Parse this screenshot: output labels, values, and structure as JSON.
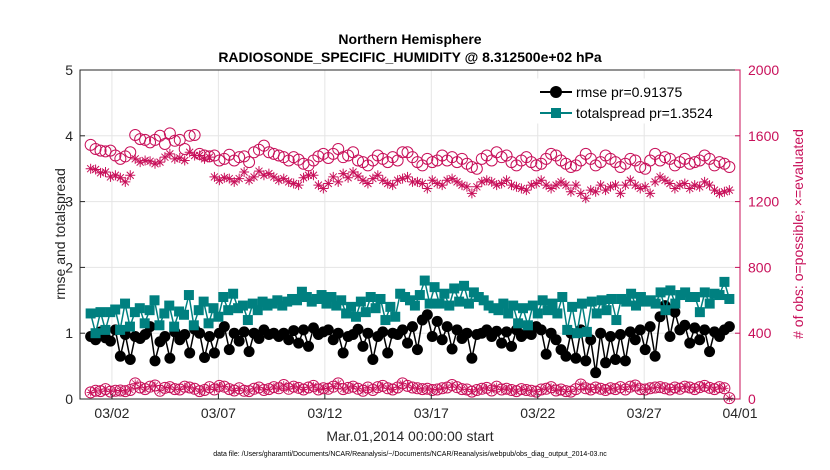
{
  "chart_data": {
    "type": "line",
    "title_line1": "Northern Hemisphere",
    "title_line2": "RADIOSONDE_SPECIFIC_HUMIDITY @ 8.312500e+02 hPa",
    "xlabel": "Mar.01,2014 00:00:00 start",
    "ylabel_left": "rmse and totalspread",
    "ylabel_right": "# of obs: o=possible; ×=evaluated",
    "footnote": "data file: /Users/gharamti/Documents/NCAR/Reanalysis/~/Documents/NCAR/Reanalysis/webpub/obs_diag_output_2014-03.nc",
    "xlim": [
      0.5,
      31.5
    ],
    "ylim_left": [
      0,
      5
    ],
    "ylim_right": [
      0,
      2000
    ],
    "x_ticks": [
      {
        "x": 2,
        "label": "03/02"
      },
      {
        "x": 7,
        "label": "03/07"
      },
      {
        "x": 12,
        "label": "03/12"
      },
      {
        "x": 17,
        "label": "03/17"
      },
      {
        "x": 22,
        "label": "03/22"
      },
      {
        "x": 27,
        "label": "03/27"
      },
      {
        "x": 32,
        "label": "04/01"
      }
    ],
    "y_ticks_left": [
      "0",
      "1",
      "2",
      "3",
      "4",
      "5"
    ],
    "y_ticks_right": [
      "0",
      "400",
      "800",
      "1200",
      "1600",
      "2000"
    ],
    "colors": {
      "rmse": "#000000",
      "totalspread": "#008080",
      "obs": "#c8105a",
      "grid": "#e5e5e5"
    },
    "series": [
      {
        "name": "rmse",
        "legend": "rmse pr=0.91375",
        "axis": "left",
        "values": [
          0.95,
          0.9,
          1.02,
          0.93,
          0.88,
          1.05,
          0.65,
          0.98,
          0.6,
          0.95,
          0.92,
          0.98,
          1.1,
          0.58,
          0.87,
          0.95,
          0.62,
          1.02,
          0.9,
          0.98,
          0.7,
          1.06,
          1.0,
          0.63,
          0.95,
          0.7,
          1.0,
          1.1,
          0.75,
          1.0,
          0.88,
          1.02,
          0.72,
          1.0,
          0.92,
          1.05,
          0.98,
          1.0,
          0.95,
          1.0,
          0.9,
          1.04,
          0.85,
          1.05,
          0.8,
          1.08,
          0.98,
          1.02,
          1.05,
          0.9,
          1.0,
          0.7,
          0.95,
          0.98,
          1.06,
          0.8,
          1.0,
          0.6,
          0.95,
          1.02,
          0.7,
          1.0,
          0.98,
          1.05,
          0.85,
          1.1,
          0.75,
          1.2,
          1.28,
          0.95,
          1.18,
          0.9,
          1.1,
          0.76,
          1.05,
          0.92,
          1.0,
          0.62,
          0.98,
          1.0,
          1.05,
          0.95,
          1.03,
          0.85,
          1.02,
          0.8,
          1.05,
          0.95,
          1.0,
          0.98,
          1.1,
          1.05,
          0.68,
          1.0,
          0.9,
          0.75,
          0.65,
          1.0,
          0.62,
          1.05,
          0.58,
          0.9,
          0.4,
          1.0,
          0.55,
          0.95,
          0.6,
          0.98,
          0.58,
          1.02,
          0.9,
          1.05,
          0.75,
          1.1,
          0.65,
          1.25,
          1.42,
          0.95,
          1.32,
          1.05,
          1.12,
          0.85,
          1.08,
          0.9,
          1.05,
          0.72,
          1.02,
          0.95,
          1.05,
          1.1
        ]
      },
      {
        "name": "totalspread",
        "legend": "totalspread pr=1.3524",
        "axis": "left",
        "values": [
          1.3,
          1.0,
          1.32,
          1.05,
          1.32,
          1.36,
          1.05,
          1.45,
          1.1,
          1.32,
          1.38,
          1.15,
          1.35,
          1.5,
          1.12,
          1.3,
          1.42,
          1.1,
          1.33,
          1.28,
          1.58,
          1.12,
          1.35,
          1.48,
          1.15,
          1.38,
          1.25,
          1.55,
          1.35,
          1.6,
          1.38,
          1.42,
          1.2,
          1.45,
          1.35,
          1.48,
          1.42,
          1.45,
          1.5,
          1.42,
          1.48,
          1.52,
          1.5,
          1.63,
          1.55,
          1.48,
          1.52,
          1.58,
          1.45,
          1.55,
          1.42,
          1.5,
          1.3,
          1.4,
          1.25,
          1.48,
          1.32,
          1.55,
          1.38,
          1.52,
          1.2,
          1.4,
          1.25,
          1.6,
          1.55,
          1.5,
          1.42,
          1.58,
          1.8,
          1.45,
          1.7,
          1.45,
          1.6,
          1.42,
          1.68,
          1.48,
          1.72,
          1.45,
          1.62,
          1.55,
          1.5,
          1.42,
          1.38,
          1.35,
          1.45,
          1.3,
          1.42,
          1.15,
          1.38,
          1.12,
          1.42,
          1.3,
          1.5,
          1.35,
          1.45,
          1.3,
          1.55,
          1.05,
          1.4,
          1.0,
          1.45,
          1.02,
          1.48,
          1.3,
          1.5,
          1.35,
          1.52,
          1.2,
          1.52,
          1.48,
          1.6,
          1.42,
          1.55,
          1.48,
          1.5,
          1.45,
          1.62,
          1.35,
          1.65,
          1.45,
          1.58,
          1.62,
          1.55,
          1.55,
          1.32,
          1.62,
          1.45,
          1.6,
          1.58,
          1.78,
          1.52
        ]
      },
      {
        "name": "possible",
        "legend": "o=possible",
        "axis": "right",
        "values": [
          1545,
          1520,
          1510,
          1505,
          1510,
          1480,
          1460,
          1475,
          1500,
          1605,
          1580,
          1575,
          1560,
          1575,
          1600,
          1550,
          1615,
          1570,
          1575,
          1520,
          1600,
          1605,
          1490,
          1480,
          1475,
          1480,
          1450,
          1460,
          1485,
          1450,
          1470,
          1475,
          1440,
          1500,
          1515,
          1540,
          1500,
          1490,
          1480,
          1470,
          1450,
          1470,
          1455,
          1430,
          1420,
          1450,
          1475,
          1490,
          1465,
          1490,
          1520,
          1470,
          1480,
          1500,
          1450,
          1440,
          1420,
          1450,
          1480,
          1460,
          1440,
          1470,
          1450,
          1500,
          1500,
          1470,
          1440,
          1420,
          1460,
          1440,
          1450,
          1480,
          1450,
          1470,
          1440,
          1460,
          1430,
          1410,
          1400,
          1460,
          1480,
          1450,
          1500,
          1470,
          1480,
          1440,
          1420,
          1450,
          1470,
          1440,
          1420,
          1430,
          1460,
          1490,
          1480,
          1450,
          1430,
          1410,
          1420,
          1450,
          1490,
          1460,
          1420,
          1440,
          1480,
          1460,
          1440,
          1410,
          1430,
          1460,
          1450,
          1410,
          1400,
          1450,
          1490,
          1450,
          1470,
          1460,
          1420,
          1440,
          1460,
          1430,
          1440,
          1450,
          1480,
          1460,
          1420,
          1440,
          1430,
          1410
        ]
      },
      {
        "name": "evaluated",
        "legend": "×=evaluated",
        "axis": "right",
        "values": [
          1400,
          1395,
          1375,
          1380,
          1350,
          1360,
          1345,
          1320,
          1360,
          1460,
          1440,
          1450,
          1445,
          1430,
          1440,
          1470,
          1490,
          1460,
          1465,
          1450,
          1500,
          1480,
          1480,
          1460,
          1470,
          1350,
          1330,
          1345,
          1340,
          1320,
          1340,
          1380,
          1330,
          1350,
          1385,
          1360,
          1370,
          1350,
          1330,
          1340,
          1320,
          1310,
          1300,
          1345,
          1360,
          1360,
          1300,
          1280,
          1310,
          1350,
          1320,
          1370,
          1345,
          1380,
          1355,
          1330,
          1310,
          1340,
          1360,
          1330,
          1310,
          1300,
          1330,
          1340,
          1350,
          1320,
          1320,
          1310,
          1280,
          1330,
          1310,
          1300,
          1330,
          1340,
          1320,
          1300,
          1290,
          1250,
          1290,
          1320,
          1330,
          1320,
          1300,
          1310,
          1330,
          1300,
          1290,
          1280,
          1270,
          1300,
          1310,
          1330,
          1300,
          1280,
          1300,
          1320,
          1300,
          1260,
          1300,
          1250,
          1220,
          1270,
          1260,
          1300,
          1270,
          1290,
          1300,
          1250,
          1300,
          1330,
          1300,
          1280,
          1290,
          1250,
          1320,
          1350,
          1330,
          1310,
          1280,
          1300,
          1310,
          1280,
          1300,
          1290,
          1320,
          1300,
          1270,
          1250,
          1260,
          1270
        ]
      },
      {
        "name": "possible_low",
        "legend": "",
        "axis": "right",
        "values": [
          40,
          50,
          48,
          60,
          45,
          50,
          52,
          48,
          55,
          95,
          70,
          60,
          75,
          82,
          50,
          68,
          72,
          60,
          58,
          75,
          70,
          62,
          48,
          55,
          72,
          58,
          80,
          75,
          60,
          52,
          65,
          50,
          48,
          62,
          70,
          55,
          60,
          72,
          65,
          85,
          62,
          75,
          68,
          58,
          70,
          80,
          58,
          65,
          62,
          75,
          95,
          60,
          68,
          75,
          62,
          50,
          70,
          55,
          72,
          80,
          65,
          58,
          70,
          95,
          80,
          70,
          65,
          60,
          62,
          55,
          58,
          65,
          70,
          85,
          72,
          60,
          58,
          45,
          55,
          62,
          68,
          52,
          75,
          58,
          62,
          55,
          48,
          60,
          55,
          50,
          45,
          58,
          62,
          72,
          52,
          58,
          48,
          45,
          60,
          88,
          65,
          58,
          70,
          62,
          55,
          65,
          60,
          72,
          58,
          75,
          82,
          60,
          58,
          65,
          70,
          72,
          65,
          58,
          70,
          62,
          75,
          70,
          60,
          72,
          80,
          68,
          60,
          72,
          65,
          5
        ]
      }
    ]
  }
}
